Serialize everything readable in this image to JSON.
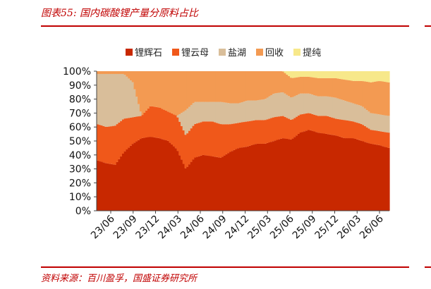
{
  "header": {
    "title": "图表55:  国内碳酸锂产量分原料占比"
  },
  "footer": {
    "source": "资料来源：百川盈孚，国盛证券研究所"
  },
  "chart_data": {
    "type": "area",
    "stacked_percent": true,
    "y_tick_labels": [
      "0%",
      "10%",
      "20%",
      "30%",
      "40%",
      "50%",
      "60%",
      "70%",
      "80%",
      "90%",
      "100%"
    ],
    "ylim": [
      0,
      100
    ],
    "x_tick_labels": [
      "23/06",
      "23/09",
      "23/12",
      "24/03",
      "24/06",
      "24/09",
      "24/12",
      "25/03",
      "25/06",
      "25/09",
      "25/12",
      "26/03",
      "26/06"
    ],
    "legend_position": "top",
    "series": [
      {
        "name": "锂辉石",
        "color": "#C82800",
        "values": [
          36,
          34,
          33,
          42,
          48,
          52,
          53,
          52,
          50,
          44,
          30,
          38,
          40,
          39,
          38,
          42,
          45,
          46,
          48,
          48,
          50,
          52,
          51,
          56,
          58,
          56,
          55,
          54,
          52,
          52,
          50,
          48,
          47,
          45
        ]
      },
      {
        "name": "锂云母",
        "color": "#F0581A",
        "values": [
          26,
          26,
          28,
          24,
          19,
          16,
          22,
          22,
          21,
          24,
          24,
          24,
          24,
          25,
          24,
          20,
          18,
          18,
          17,
          17,
          17,
          16,
          14,
          13,
          12,
          12,
          13,
          12,
          13,
          12,
          12,
          10,
          10,
          11
        ]
      },
      {
        "name": "盐湖",
        "color": "#D9BE9A",
        "values": [
          36,
          38,
          37,
          32,
          25,
          0,
          0,
          0,
          0,
          0,
          18,
          16,
          14,
          14,
          16,
          15,
          14,
          15,
          14,
          15,
          17,
          17,
          16,
          15,
          14,
          14,
          14,
          15,
          14,
          13,
          13,
          12,
          12,
          12
        ]
      },
      {
        "name": "回收",
        "color": "#F39A52",
        "values": [
          2,
          2,
          2,
          2,
          8,
          32,
          25,
          26,
          29,
          32,
          28,
          22,
          22,
          22,
          22,
          23,
          23,
          21,
          21,
          20,
          16,
          15,
          14,
          12,
          12,
          13,
          13,
          14,
          15,
          16,
          18,
          22,
          24,
          24
        ]
      },
      {
        "name": "提纯",
        "color": "#F7E88A",
        "values": [
          0,
          0,
          0,
          0,
          0,
          0,
          0,
          0,
          0,
          0,
          0,
          0,
          0,
          0,
          0,
          0,
          0,
          0,
          0,
          0,
          0,
          0,
          5,
          4,
          4,
          5,
          5,
          5,
          6,
          7,
          7,
          8,
          7,
          8
        ]
      }
    ]
  }
}
